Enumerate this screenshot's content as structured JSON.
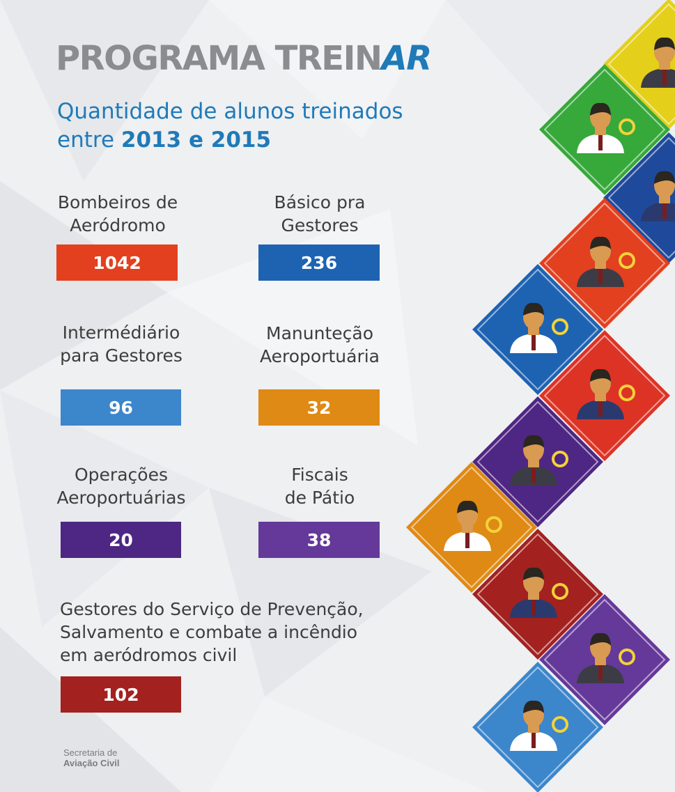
{
  "header": {
    "title_main": "PROGRAMA TREIN",
    "title_accent": "AR",
    "subtitle_line1": "Quantidade de alunos treinados",
    "subtitle_line2_prefix": "entre ",
    "subtitle_line2_bold": "2013 e 2015"
  },
  "colors": {
    "title_gray": "#8a8c8f",
    "accent_blue": "#1f7ab8"
  },
  "stats": [
    {
      "label": "Bombeiros de\nAeródromo",
      "value": "1042",
      "color": "#e2401f"
    },
    {
      "label": "Básico pra\nGestores",
      "value": "236",
      "color": "#1d63b2"
    },
    {
      "label": "Intermédiário\npara Gestores",
      "value": "96",
      "color": "#3c86cc"
    },
    {
      "label": "Manunteção\nAeroportuária",
      "value": "32",
      "color": "#df8a14"
    },
    {
      "label": "Operações\nAeroportuárias",
      "value": "20",
      "color": "#4e2683"
    },
    {
      "label": "Fiscais\nde Pátio",
      "value": "38",
      "color": "#64399a"
    },
    {
      "label": "Gestores do Serviço de Prevenção,\nSalvamento e combate a incêndio\nem aeródromos civil",
      "value": "102",
      "color": "#a3211f"
    }
  ],
  "footer": {
    "line1": "Secretaria de",
    "line2": "Aviação Civil"
  },
  "tiles": [
    {
      "color": "#e4cf1a",
      "icon": "businessman-icon"
    },
    {
      "color": "#37a83a",
      "icon": "manager-money-icon"
    },
    {
      "color": "#1f4a9c",
      "icon": "woman-glasses-icon"
    },
    {
      "color": "#e2401f",
      "icon": "firefighter-icon"
    },
    {
      "color": "#1d63b2",
      "icon": "manager-growth-icon"
    },
    {
      "color": "#dd3325",
      "icon": "firetruck-crew-icon"
    },
    {
      "color": "#4e2683",
      "icon": "inspector-magnifier-icon"
    },
    {
      "color": "#df8a14",
      "icon": "mechanic-tools-icon"
    },
    {
      "color": "#a3211f",
      "icon": "woman-alarm-icon"
    },
    {
      "color": "#64399a",
      "icon": "worker-extinguisher-icon"
    },
    {
      "color": "#3c86cc",
      "icon": "executive-growth-icon"
    }
  ]
}
